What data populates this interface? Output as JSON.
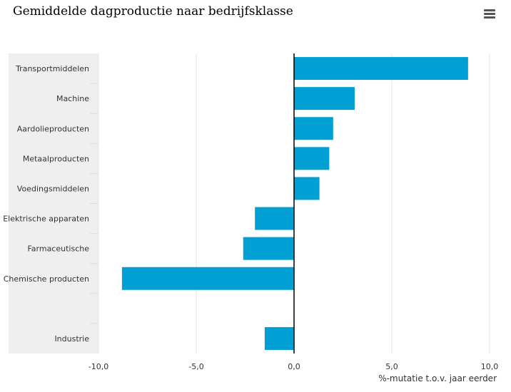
{
  "header": {
    "title": "Gemiddelde dagproductie naar bedrijfsklasse",
    "menu_icon": "hamburger-menu-icon"
  },
  "colors": {
    "bar": "#009fd4",
    "category_band": "#efefef",
    "grid": "#e6e6e6",
    "zero_line": "#000000"
  },
  "chart_data": {
    "type": "bar",
    "orientation": "horizontal",
    "title": "Gemiddelde dagproductie naar bedrijfsklasse",
    "xlabel": "%-mutatie t.o.v. jaar eerder",
    "ylabel": "",
    "xlim": [
      -10,
      10
    ],
    "xticks": [
      -10,
      -5,
      0,
      5,
      10
    ],
    "xtick_labels": [
      "-10,0",
      "-5,0",
      "0,0",
      "5,0",
      "10,0"
    ],
    "grid": true,
    "categories": [
      "Transportmiddelen",
      "Machine",
      "Aardolieproducten",
      "Metaalproducten",
      "Voedingsmiddelen",
      "Elektrische apparaten",
      "Farmaceutische",
      "Chemische producten",
      "",
      "Industrie"
    ],
    "values": [
      8.9,
      3.1,
      2.0,
      1.8,
      1.3,
      -2.0,
      -2.6,
      -8.8,
      null,
      -1.5
    ]
  }
}
